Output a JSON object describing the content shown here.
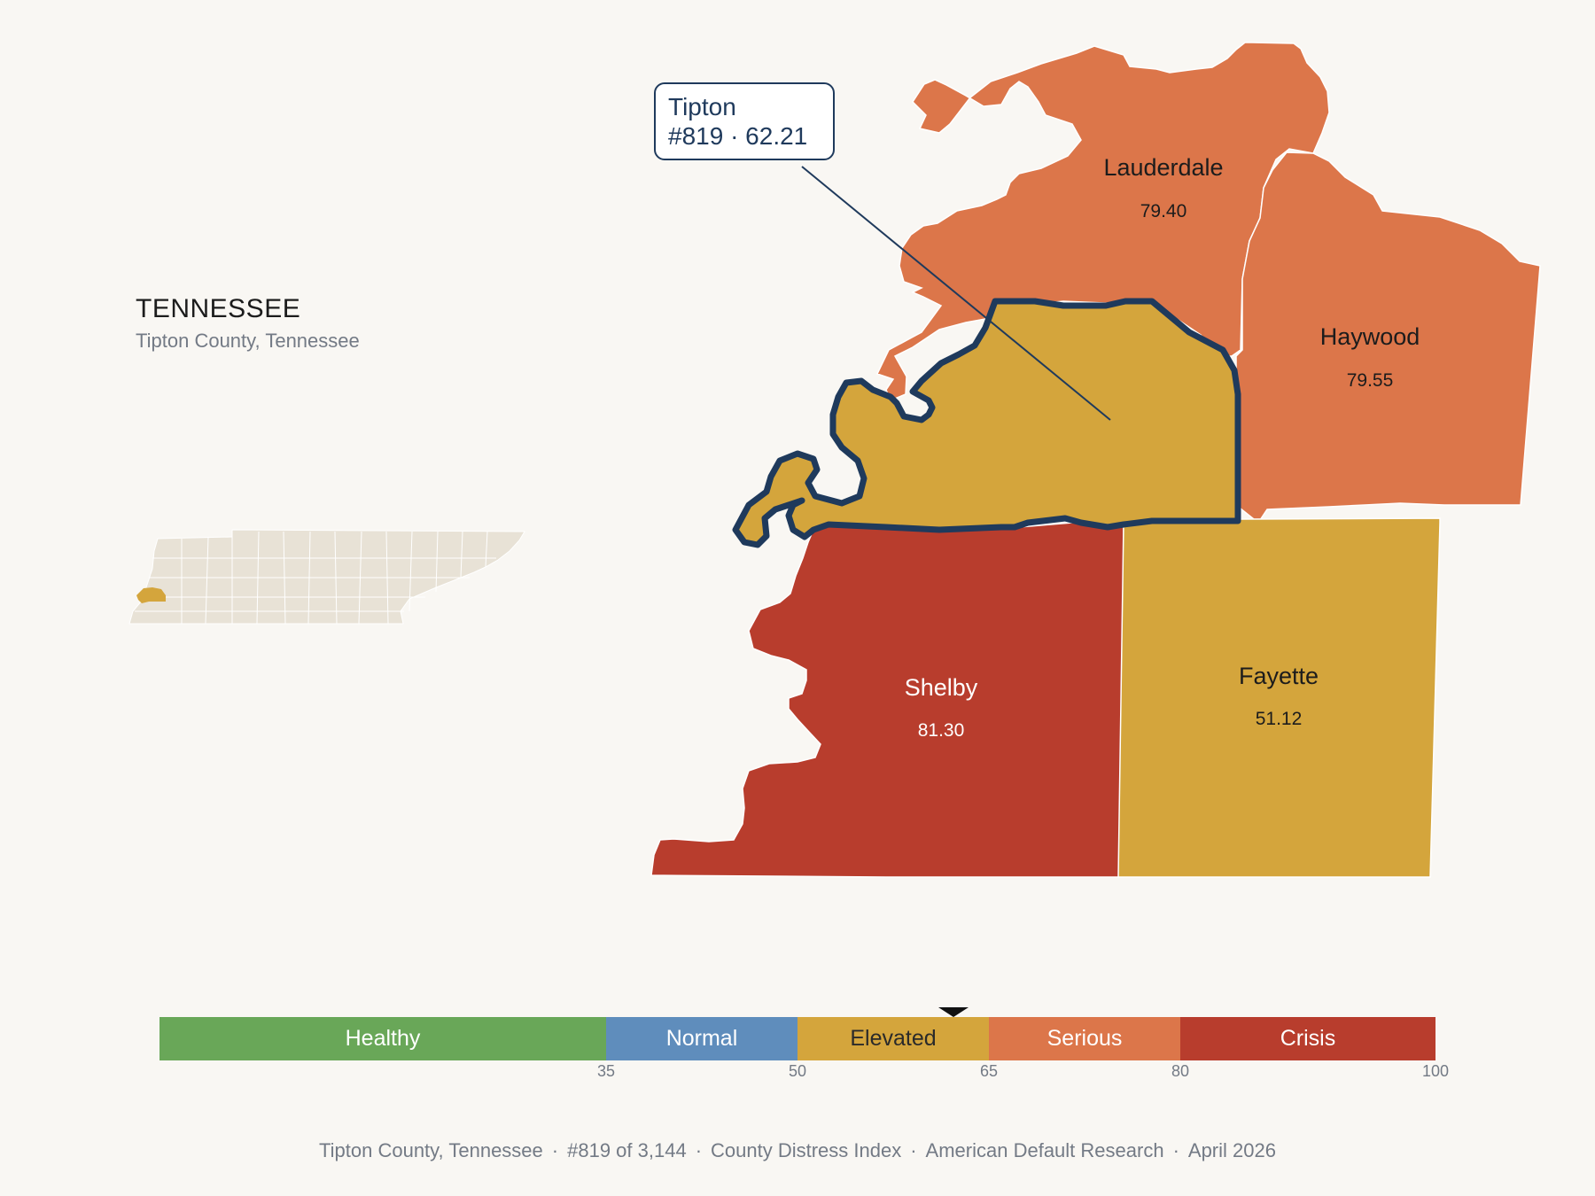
{
  "state": {
    "title": "TENNESSEE",
    "subtitle": "Tipton County, Tennessee"
  },
  "callout": {
    "county": "Tipton",
    "rank_score": "#819 · 62.21"
  },
  "counties": [
    {
      "key": "tipton",
      "name": "Tipton",
      "score": "62.21",
      "color": "#d4a53c",
      "selected": true
    },
    {
      "key": "lauderdale",
      "name": "Lauderdale",
      "score": "79.40",
      "color": "#dc764a"
    },
    {
      "key": "haywood",
      "name": "Haywood",
      "score": "79.55",
      "color": "#dc764a"
    },
    {
      "key": "shelby",
      "name": "Shelby",
      "score": "81.30",
      "color": "#b83d2d"
    },
    {
      "key": "fayette",
      "name": "Fayette",
      "score": "51.12",
      "color": "#d4a53c"
    }
  ],
  "legend": {
    "segments": [
      {
        "label": "Healthy",
        "from": 0,
        "to": 35,
        "color": "#69a758"
      },
      {
        "label": "Normal",
        "from": 35,
        "to": 50,
        "color": "#5f8dbc"
      },
      {
        "label": "Elevated",
        "from": 50,
        "to": 65,
        "color": "#d4a53c"
      },
      {
        "label": "Serious",
        "from": 65,
        "to": 80,
        "color": "#dc764a"
      },
      {
        "label": "Crisis",
        "from": 80,
        "to": 100,
        "color": "#b83d2d"
      }
    ],
    "ticks": [
      "35",
      "50",
      "65",
      "80",
      "100"
    ],
    "marker_value": 62.21
  },
  "footer": {
    "county": "Tipton County, Tennessee",
    "rank": "#819 of 3,144",
    "index": "County Distress Index",
    "source": "American Default Research",
    "date": "April 2026"
  },
  "colors": {
    "selected_outline": "#1f3a5c",
    "inset_fill": "#e8e2d6",
    "background": "#f9f7f3"
  }
}
